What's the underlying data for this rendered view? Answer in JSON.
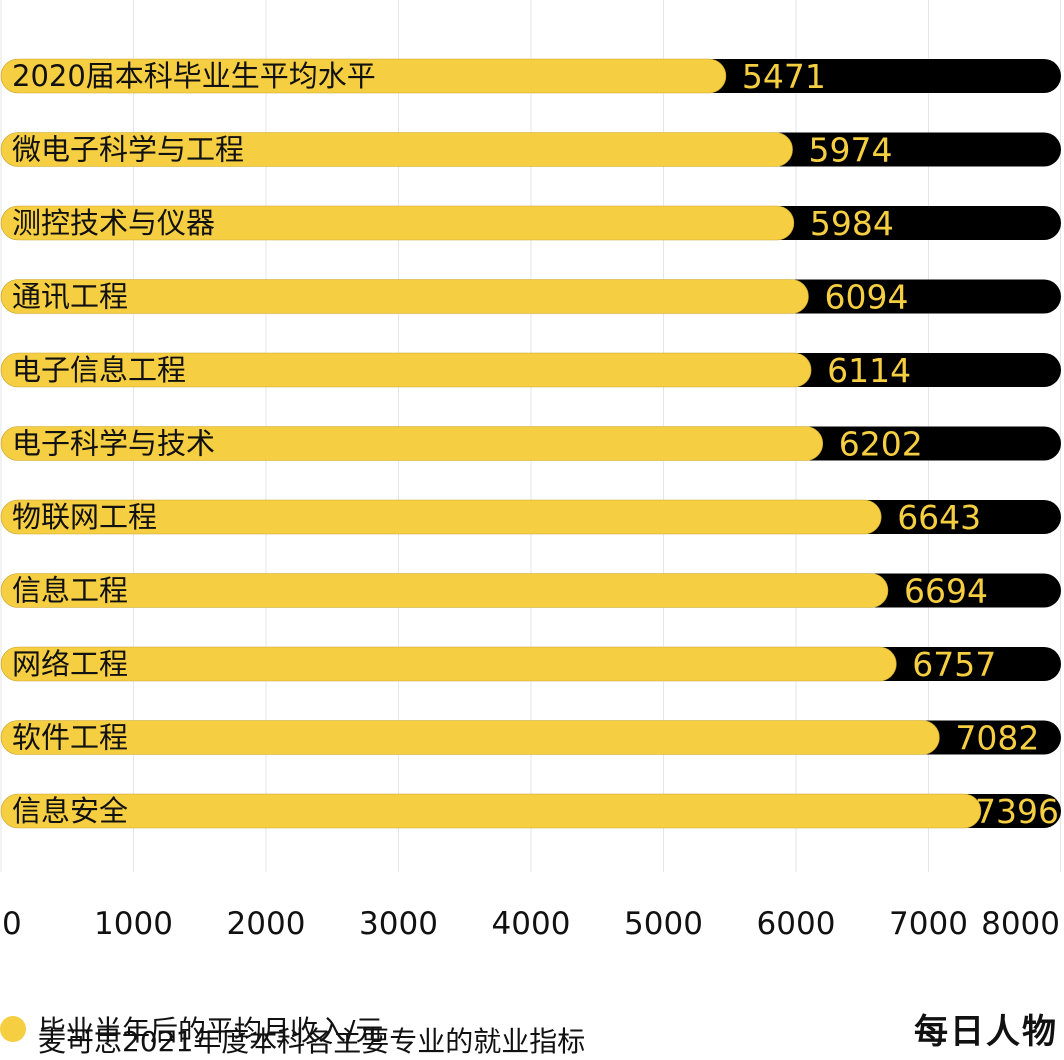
{
  "chart_data": {
    "type": "bar",
    "orientation": "horizontal",
    "categories": [
      "2020届本科毕业生平均水平",
      "微电子科学与工程",
      "测控技术与仪器",
      "通讯工程",
      "电子信息工程",
      "电子科学与技术",
      "物联网工程",
      "信息工程",
      "网络工程",
      "软件工程",
      "信息安全"
    ],
    "series": [
      {
        "name": "毕业半年后的平均月收入/元",
        "values": [
          5471,
          5974,
          5984,
          6094,
          6114,
          6202,
          6643,
          6694,
          6757,
          7082,
          7396
        ]
      }
    ],
    "xlim": [
      0,
      8000
    ],
    "x_ticks": [
      "0",
      "1000",
      "2000",
      "3000",
      "4000",
      "5000",
      "6000",
      "7000",
      "8000"
    ],
    "grid": "vertical",
    "legend": "bottom-left",
    "colors": {
      "bar": "#F5CE42",
      "track": "#000000",
      "grid": "#E6E6E6"
    }
  },
  "legend_label": "毕业半年后的平均月收入/元",
  "source": "麦可思2021年度本科各主要专业的就业指标",
  "brand": "每日人物"
}
